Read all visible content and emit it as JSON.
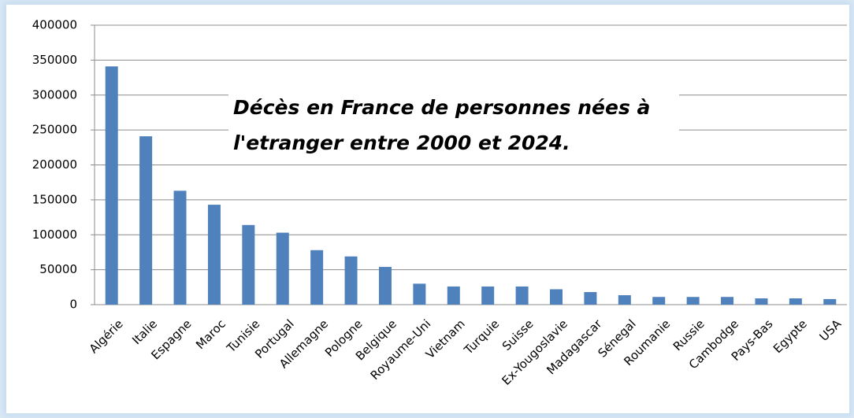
{
  "chart_data": {
    "type": "bar",
    "title": "Décès en France de personnes nées à l'etranger entre 2000 et 2024.",
    "categories": [
      "Algérie",
      "Italie",
      "Espagne",
      "Maroc",
      "Tunisie",
      "Portugal",
      "Allemagne",
      "Pologne",
      "Belgique",
      "Royaume-Uni",
      "Vietnam",
      "Turquie",
      "Suisse",
      "Ex-Yougoslavie",
      "Madagascar",
      "Sénegal",
      "Roumanie",
      "Russie",
      "Cambodge",
      "Pays-Bas",
      "Egypte",
      "USA"
    ],
    "values": [
      341000,
      241000,
      163000,
      143000,
      114000,
      103000,
      78000,
      69000,
      54000,
      30000,
      26000,
      26000,
      26000,
      22000,
      18000,
      13500,
      11000,
      11000,
      11000,
      9000,
      9000,
      8000
    ],
    "color": "#4f81bd",
    "ylim": [
      0,
      400000
    ],
    "yticks": [
      0,
      50000,
      100000,
      150000,
      200000,
      250000,
      300000,
      350000,
      400000
    ],
    "grid": true
  }
}
